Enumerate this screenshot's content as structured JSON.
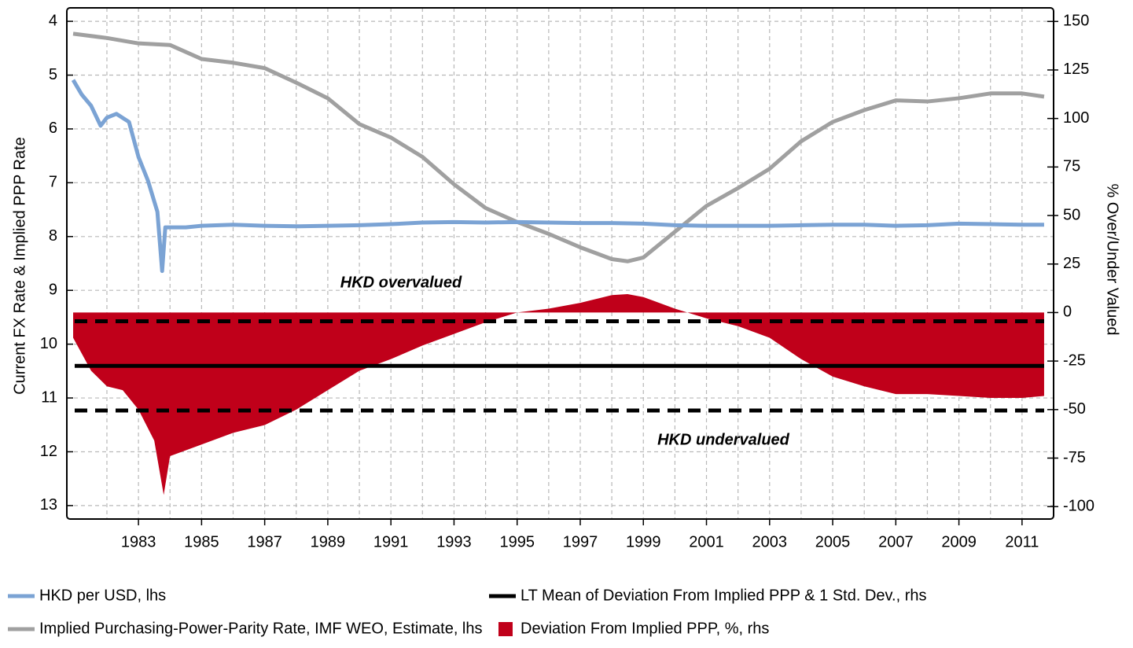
{
  "chart_data": {
    "type": "line",
    "y_label": "Current FX Rate & Implied PPP Rate",
    "y2_label": "% Over/Under Valued",
    "xlim": [
      1980.73,
      2012.0
    ],
    "xticks": [
      1983,
      1985,
      1987,
      1989,
      1991,
      1993,
      1995,
      1997,
      1999,
      2001,
      2003,
      2005,
      2007,
      2009,
      2011
    ],
    "x_minor_ticks": [
      1982,
      1984,
      1986,
      1988,
      1990,
      1992,
      1994,
      1996,
      1998,
      2000,
      2002,
      2004,
      2006,
      2008,
      2010
    ],
    "ylim": [
      3.75,
      13.25
    ],
    "y_inverted": true,
    "yticks": [
      4,
      5,
      6,
      7,
      8,
      9,
      10,
      11,
      12,
      13
    ],
    "y2lim": [
      -106.4,
      157
    ],
    "y2ticks": [
      150,
      125,
      100,
      75,
      50,
      25,
      0,
      -25,
      -50,
      -75,
      -100
    ],
    "grid": true,
    "annotations": [
      "HKD overvalued",
      "HKD undervalued"
    ],
    "series": [
      {
        "name": "Deviation From Implied PPP, %, rhs",
        "type": "area",
        "axis": "y2",
        "color": "#c0001a",
        "x": [
          1980.93,
          1981.5,
          1982,
          1982.5,
          1983,
          1983.5,
          1983.8,
          1984,
          1985,
          1986,
          1987,
          1988,
          1989,
          1990,
          1991,
          1992,
          1993,
          1994,
          1995,
          1996,
          1997,
          1998,
          1998.5,
          1999,
          2000,
          2001,
          2002,
          2003,
          2004,
          2005,
          2006,
          2007,
          2008,
          2009,
          2010,
          2011,
          2011.7
        ],
        "values": [
          -13,
          -30,
          -38,
          -40,
          -50,
          -66,
          -94,
          -74,
          -68,
          -62,
          -58,
          -50,
          -40,
          -30,
          -24,
          -17,
          -11,
          -5,
          0,
          2,
          5,
          9,
          9.5,
          8,
          2,
          -3,
          -7,
          -13,
          -24,
          -33,
          -38,
          -42,
          -42,
          -43,
          -44,
          -44,
          -43
        ]
      },
      {
        "name": "LT Mean of Deviation From Implied PPP & 1 Std. Dev., rhs",
        "type": "hline",
        "axis": "y2",
        "color": "#000000",
        "values": [
          -4.5,
          -27.5,
          -50.5
        ],
        "dashed": [
          true,
          false,
          true
        ]
      },
      {
        "name": "Implied Purchasing-Power-Parity Rate, IMF WEO, Estimate, lhs",
        "type": "line",
        "axis": "y",
        "color": "#a0a0a0",
        "x": [
          1980.93,
          1982,
          1983,
          1984,
          1985,
          1986,
          1987,
          1988,
          1989,
          1990,
          1991,
          1992,
          1993,
          1994,
          1995,
          1996,
          1997,
          1998,
          1998.5,
          1999,
          2000,
          2001,
          2002,
          2003,
          2004,
          2005,
          2006,
          2007,
          2008,
          2009,
          2010,
          2011,
          2011.7
        ],
        "values": [
          4.23,
          4.31,
          4.41,
          4.44,
          4.7,
          4.77,
          4.87,
          5.14,
          5.43,
          5.91,
          6.16,
          6.52,
          7.03,
          7.47,
          7.73,
          7.95,
          8.2,
          8.42,
          8.46,
          8.39,
          7.91,
          7.43,
          7.1,
          6.74,
          6.23,
          5.87,
          5.65,
          5.47,
          5.49,
          5.43,
          5.34,
          5.34,
          5.4
        ]
      },
      {
        "name": "HKD per USD, lhs",
        "type": "line",
        "axis": "y",
        "color": "#7ba3d4",
        "x": [
          1980.93,
          1981.2,
          1981.5,
          1981.8,
          1982,
          1982.3,
          1982.7,
          1983,
          1983.3,
          1983.6,
          1983.75,
          1983.85,
          1984.5,
          1985,
          1986,
          1987,
          1988,
          1989,
          1990,
          1991,
          1992,
          1993,
          1994,
          1995,
          1996,
          1997,
          1998,
          1999,
          2000,
          2001,
          2002,
          2003,
          2004,
          2005,
          2006,
          2007,
          2008,
          2009,
          2010,
          2011,
          2011.7
        ],
        "values": [
          5.09,
          5.36,
          5.57,
          5.94,
          5.79,
          5.72,
          5.87,
          6.52,
          6.96,
          7.54,
          8.64,
          7.83,
          7.83,
          7.8,
          7.78,
          7.8,
          7.81,
          7.8,
          7.79,
          7.77,
          7.74,
          7.73,
          7.74,
          7.73,
          7.74,
          7.75,
          7.75,
          7.76,
          7.79,
          7.8,
          7.8,
          7.8,
          7.79,
          7.78,
          7.78,
          7.8,
          7.79,
          7.76,
          7.77,
          7.78,
          7.78
        ]
      }
    ]
  }
}
